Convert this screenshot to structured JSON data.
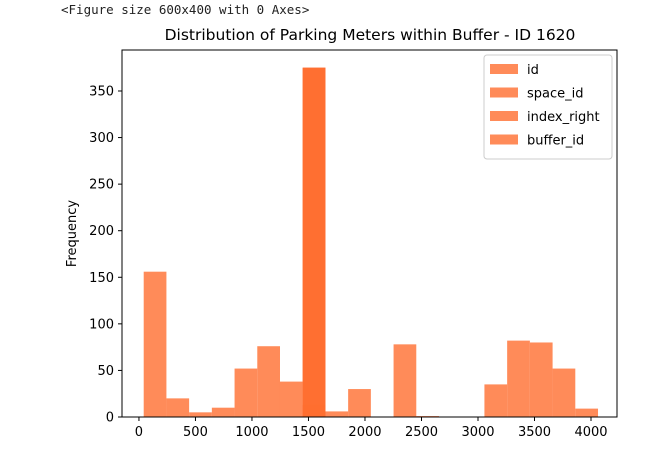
{
  "output_caption": "<Figure size 600x400 with 0 Axes>",
  "colors": {
    "bar": "#ff6e30",
    "bar_overlap": "#ff4000",
    "axis": "#000000"
  },
  "chart_data": {
    "type": "bar",
    "title": "Distribution of Parking Meters within Buffer - ID 1620",
    "xlabel": "",
    "ylabel": "Frequency",
    "xlim": [
      -150,
      4230
    ],
    "ylim": [
      0,
      394
    ],
    "x_ticks": [
      0,
      500,
      1000,
      1500,
      2000,
      2500,
      3000,
      3500,
      4000
    ],
    "y_ticks": [
      0,
      50,
      100,
      150,
      200,
      250,
      300,
      350
    ],
    "legend_position": "top-right",
    "series": [
      {
        "name": "id",
        "bins": [
          {
            "x0": 42,
            "x1": 243,
            "value": 156
          },
          {
            "x0": 243,
            "x1": 444,
            "value": 20
          },
          {
            "x0": 444,
            "x1": 645,
            "value": 5
          },
          {
            "x0": 645,
            "x1": 846,
            "value": 10
          },
          {
            "x0": 846,
            "x1": 1047,
            "value": 52
          },
          {
            "x0": 1047,
            "x1": 1248,
            "value": 76
          },
          {
            "x0": 1248,
            "x1": 1449,
            "value": 38
          },
          {
            "x0": 1449,
            "x1": 1650,
            "value": 13
          },
          {
            "x0": 1650,
            "x1": 1851,
            "value": 6
          },
          {
            "x0": 1851,
            "x1": 2052,
            "value": 30
          },
          {
            "x0": 2052,
            "x1": 2253,
            "value": 0
          },
          {
            "x0": 2253,
            "x1": 2454,
            "value": 78
          },
          {
            "x0": 2454,
            "x1": 2655,
            "value": 1
          },
          {
            "x0": 2655,
            "x1": 2856,
            "value": 0
          },
          {
            "x0": 2856,
            "x1": 3057,
            "value": 0
          },
          {
            "x0": 3057,
            "x1": 3258,
            "value": 35
          },
          {
            "x0": 3258,
            "x1": 3459,
            "value": 82
          },
          {
            "x0": 3459,
            "x1": 3660,
            "value": 80
          },
          {
            "x0": 3660,
            "x1": 3861,
            "value": 52
          },
          {
            "x0": 3861,
            "x1": 4062,
            "value": 9
          }
        ]
      },
      {
        "name": "space_id",
        "bins": [
          {
            "x0": 1449,
            "x1": 1650,
            "value": 375
          }
        ]
      },
      {
        "name": "index_right",
        "bins": [
          {
            "x0": 1449,
            "x1": 1650,
            "value": 375
          }
        ]
      },
      {
        "name": "buffer_id",
        "bins": [
          {
            "x0": 1449,
            "x1": 1650,
            "value": 375
          }
        ]
      }
    ]
  }
}
